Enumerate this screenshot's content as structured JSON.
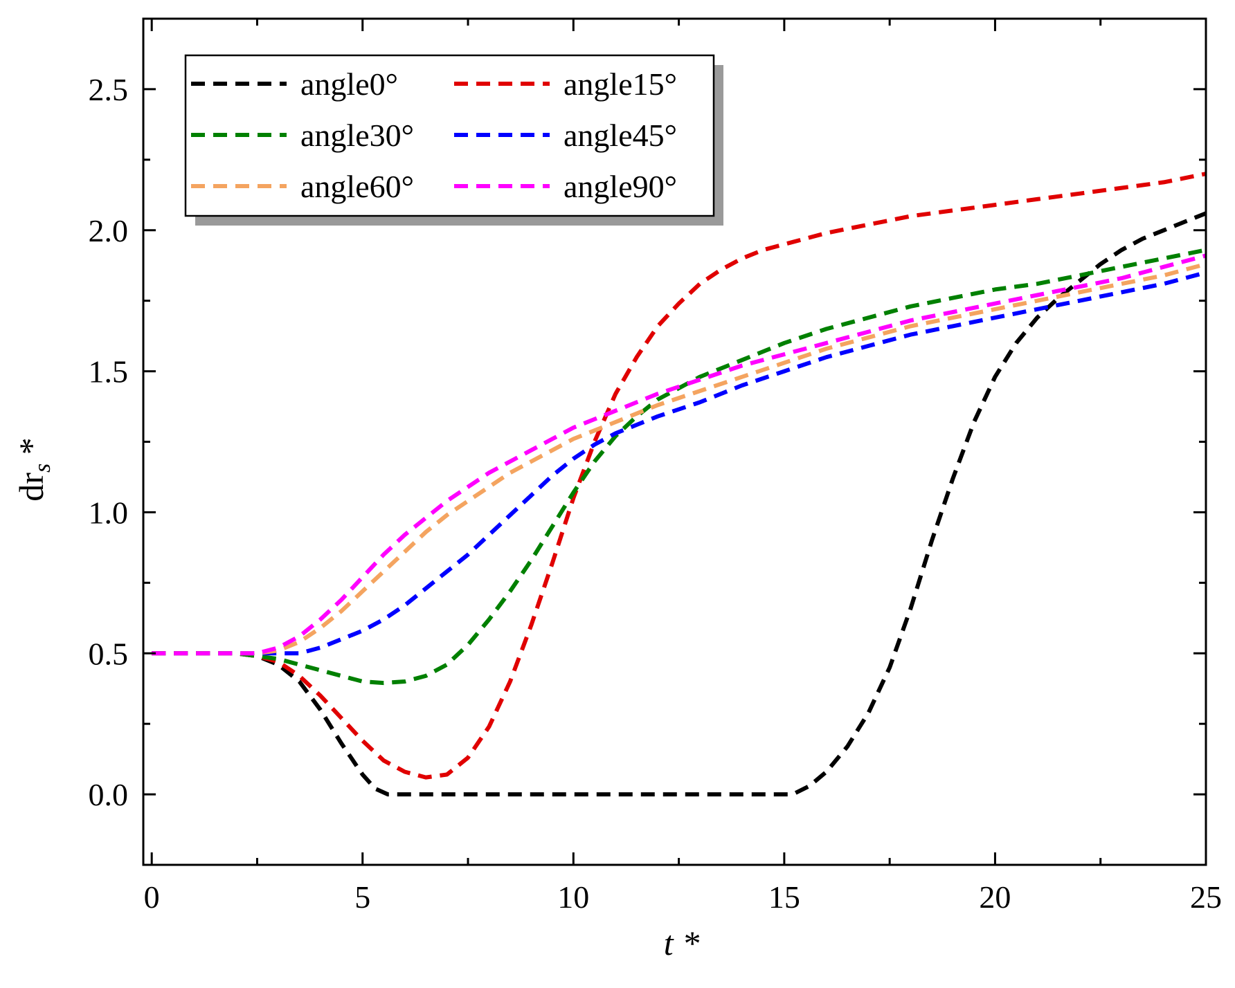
{
  "chart_data": {
    "type": "line",
    "title": "",
    "xlabel": "t *",
    "ylabel_main": "dr",
    "ylabel_sub": "s",
    "ylabel_tail": " *",
    "xlim": [
      -0.2,
      25
    ],
    "ylim": [
      -0.25,
      2.75
    ],
    "x_ticks": [
      0,
      5,
      10,
      15,
      20,
      25
    ],
    "x_tick_labels": [
      "0",
      "5",
      "10",
      "15",
      "20",
      "25"
    ],
    "x_minor_ticks": [
      2.5,
      7.5,
      12.5,
      17.5,
      22.5
    ],
    "y_ticks": [
      0.0,
      0.5,
      1.0,
      1.5,
      2.0,
      2.5
    ],
    "y_tick_labels": [
      "0.0",
      "0.5",
      "1.0",
      "1.5",
      "2.0",
      "2.5"
    ],
    "y_minor_ticks": [
      -0.25,
      0.25,
      0.75,
      1.25,
      1.75,
      2.25
    ],
    "grid": false,
    "legend_position": "top-left",
    "series": [
      {
        "name": "angle0°",
        "color": "#000000",
        "x": [
          0,
          2,
          2.5,
          3,
          3.5,
          4,
          4.5,
          5,
          5.3,
          5.6,
          6,
          8,
          10,
          12,
          14,
          15.2,
          15.6,
          16,
          16.5,
          17,
          17.5,
          18,
          18.5,
          19,
          19.5,
          20,
          20.5,
          21,
          21.5,
          22,
          22.5,
          23,
          23.5,
          24,
          24.5,
          25
        ],
        "y": [
          0.5,
          0.5,
          0.49,
          0.46,
          0.4,
          0.3,
          0.18,
          0.07,
          0.02,
          0.0,
          0.0,
          0.0,
          0.0,
          0.0,
          0.0,
          0.0,
          0.03,
          0.08,
          0.17,
          0.29,
          0.45,
          0.66,
          0.9,
          1.12,
          1.32,
          1.48,
          1.6,
          1.69,
          1.76,
          1.82,
          1.88,
          1.93,
          1.97,
          2.0,
          2.03,
          2.06
        ]
      },
      {
        "name": "angle15°",
        "color": "#e00000",
        "x": [
          0,
          2,
          2.5,
          3,
          3.5,
          4,
          4.5,
          5,
          5.5,
          6,
          6.5,
          7,
          7.5,
          8,
          8.5,
          9,
          9.5,
          10,
          10.5,
          11,
          11.5,
          12,
          12.5,
          13,
          13.5,
          14,
          14.5,
          15,
          16,
          17,
          18,
          19,
          20,
          21,
          22,
          23,
          24,
          25
        ],
        "y": [
          0.5,
          0.5,
          0.49,
          0.47,
          0.42,
          0.35,
          0.27,
          0.19,
          0.12,
          0.08,
          0.06,
          0.07,
          0.13,
          0.24,
          0.4,
          0.6,
          0.82,
          1.05,
          1.25,
          1.42,
          1.55,
          1.66,
          1.74,
          1.81,
          1.86,
          1.9,
          1.93,
          1.95,
          1.99,
          2.02,
          2.05,
          2.07,
          2.09,
          2.11,
          2.13,
          2.15,
          2.17,
          2.2
        ]
      },
      {
        "name": "angle30°",
        "color": "#008000",
        "x": [
          0,
          2,
          2.5,
          3,
          3.5,
          4,
          4.5,
          5,
          5.5,
          6,
          6.5,
          7,
          7.5,
          8,
          8.5,
          9,
          9.5,
          10,
          10.5,
          11,
          11.5,
          12,
          13,
          14,
          15,
          16,
          17,
          18,
          19,
          20,
          21,
          22,
          23,
          24,
          25
        ],
        "y": [
          0.5,
          0.5,
          0.49,
          0.48,
          0.46,
          0.44,
          0.42,
          0.4,
          0.395,
          0.4,
          0.42,
          0.46,
          0.53,
          0.62,
          0.72,
          0.83,
          0.95,
          1.07,
          1.18,
          1.27,
          1.34,
          1.4,
          1.48,
          1.54,
          1.6,
          1.65,
          1.69,
          1.73,
          1.76,
          1.79,
          1.81,
          1.84,
          1.87,
          1.9,
          1.93
        ]
      },
      {
        "name": "angle45°",
        "color": "#0000ff",
        "x": [
          0,
          2,
          2.5,
          3,
          3.5,
          4,
          4.5,
          5,
          5.5,
          6,
          6.5,
          7,
          7.5,
          8,
          8.5,
          9,
          9.5,
          10,
          10.5,
          11,
          11.5,
          12,
          13,
          14,
          15,
          16,
          17,
          18,
          19,
          20,
          21,
          22,
          23,
          24,
          25
        ],
        "y": [
          0.5,
          0.5,
          0.5,
          0.5,
          0.5,
          0.52,
          0.55,
          0.58,
          0.62,
          0.67,
          0.73,
          0.79,
          0.85,
          0.92,
          0.99,
          1.06,
          1.13,
          1.19,
          1.24,
          1.28,
          1.31,
          1.34,
          1.39,
          1.45,
          1.5,
          1.55,
          1.59,
          1.63,
          1.66,
          1.69,
          1.72,
          1.75,
          1.78,
          1.81,
          1.85
        ]
      },
      {
        "name": "angle60°",
        "color": "#f4a460",
        "x": [
          0,
          2,
          2.5,
          3,
          3.5,
          4,
          4.5,
          5,
          5.5,
          6,
          6.5,
          7,
          7.5,
          8,
          8.5,
          9,
          9.5,
          10,
          10.5,
          11,
          11.5,
          12,
          13,
          14,
          15,
          16,
          17,
          18,
          19,
          20,
          21,
          22,
          23,
          24,
          25
        ],
        "y": [
          0.5,
          0.5,
          0.5,
          0.51,
          0.54,
          0.59,
          0.65,
          0.72,
          0.79,
          0.86,
          0.93,
          0.99,
          1.04,
          1.09,
          1.14,
          1.18,
          1.22,
          1.26,
          1.29,
          1.32,
          1.35,
          1.38,
          1.43,
          1.48,
          1.53,
          1.58,
          1.62,
          1.66,
          1.69,
          1.72,
          1.75,
          1.78,
          1.81,
          1.84,
          1.88
        ]
      },
      {
        "name": "angle90°",
        "color": "#ff00ff",
        "x": [
          0,
          2,
          2.5,
          3,
          3.5,
          4,
          4.5,
          5,
          5.5,
          6,
          6.5,
          7,
          7.5,
          8,
          8.5,
          9,
          9.5,
          10,
          10.5,
          11,
          11.5,
          12,
          13,
          14,
          15,
          16,
          17,
          18,
          19,
          20,
          21,
          22,
          23,
          24,
          25
        ],
        "y": [
          0.5,
          0.5,
          0.5,
          0.52,
          0.56,
          0.62,
          0.69,
          0.77,
          0.85,
          0.92,
          0.98,
          1.04,
          1.09,
          1.14,
          1.18,
          1.22,
          1.26,
          1.3,
          1.33,
          1.36,
          1.39,
          1.42,
          1.47,
          1.52,
          1.56,
          1.6,
          1.64,
          1.68,
          1.71,
          1.74,
          1.77,
          1.8,
          1.83,
          1.87,
          1.91
        ]
      }
    ]
  }
}
